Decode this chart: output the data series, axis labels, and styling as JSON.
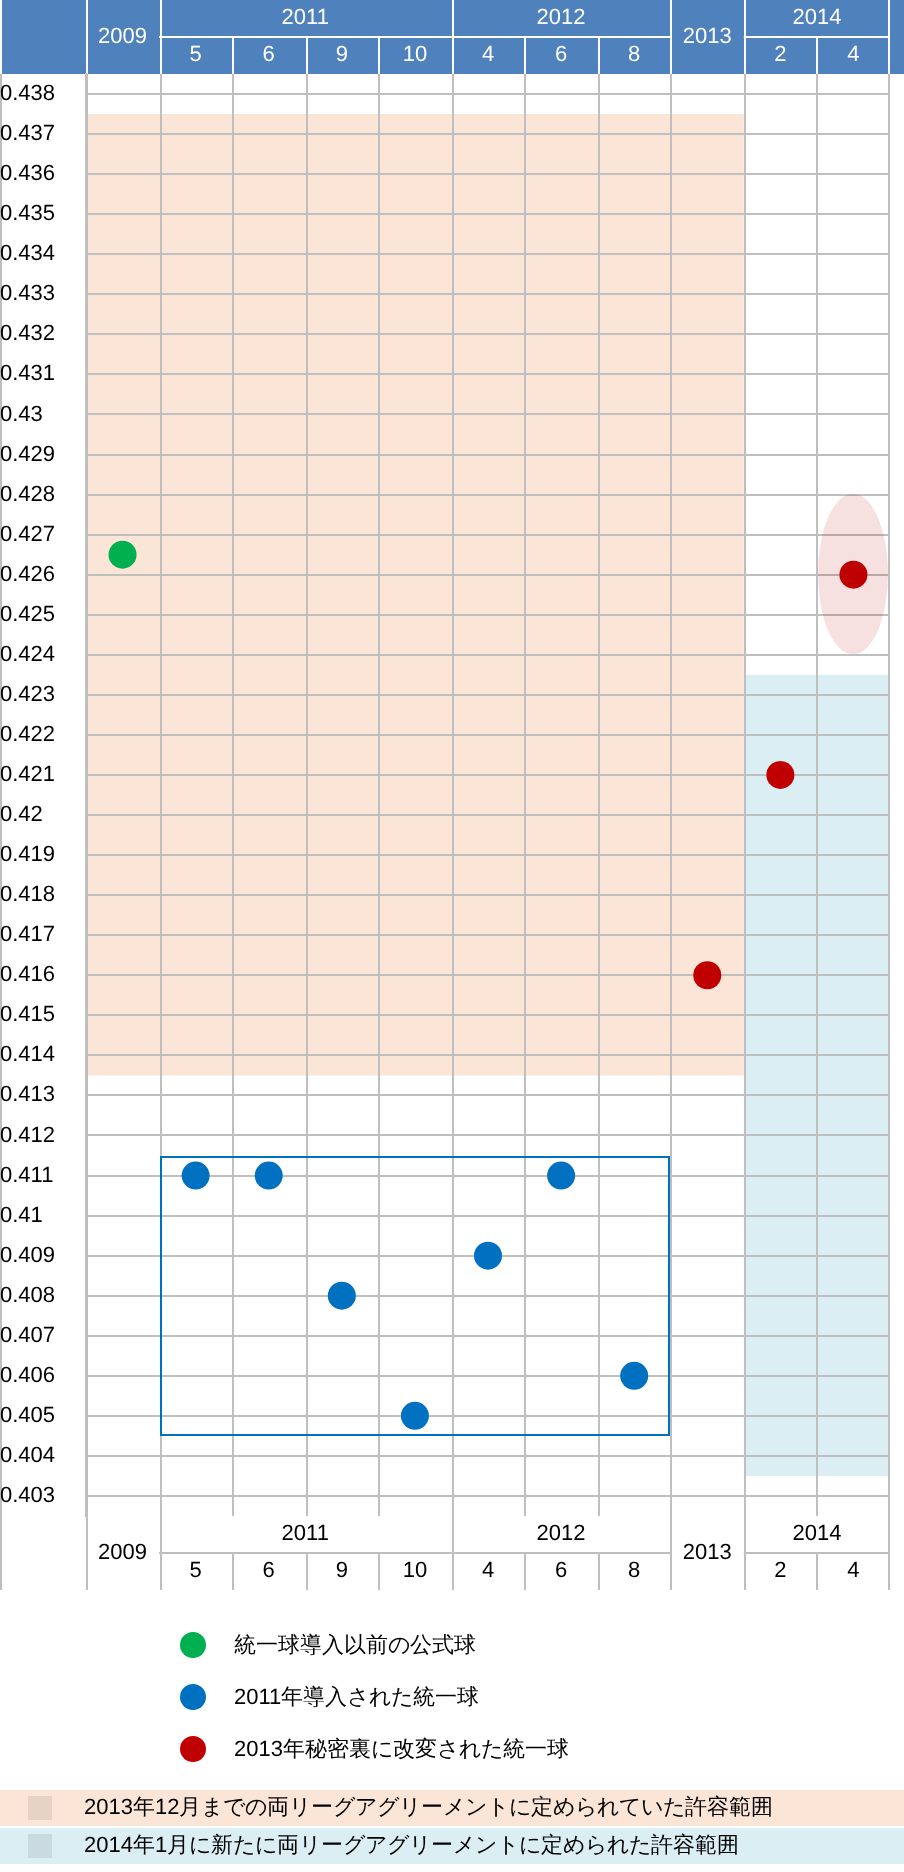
{
  "chart_data": {
    "type": "scatter",
    "categories": [
      "2009",
      "5",
      "6",
      "9",
      "10",
      "4",
      "6",
      "8",
      "2013",
      "2",
      "4"
    ],
    "annotations": [
      "2011",
      "2012",
      "2014"
    ],
    "series": [
      {
        "name": "統一球導入以前の公式球",
        "color": "#00b050",
        "values": [
          0.4265,
          null,
          null,
          null,
          null,
          null,
          null,
          null,
          null,
          null,
          null
        ]
      },
      {
        "name": "2011年導入された統一球",
        "color": "#0070c0",
        "values": [
          null,
          0.411,
          0.411,
          0.408,
          0.405,
          0.409,
          0.411,
          0.406,
          null,
          null,
          null
        ]
      },
      {
        "name": "2013年秘密裏に改変された統一球",
        "color": "#c00000",
        "values": [
          null,
          null,
          null,
          null,
          null,
          null,
          null,
          null,
          0.416,
          0.421,
          0.426
        ]
      }
    ],
    "ylim": [
      0.4025,
      0.4385
    ],
    "yticks": [
      0.403,
      0.404,
      0.405,
      0.406,
      0.407,
      0.408,
      0.409,
      0.41,
      0.411,
      0.412,
      0.413,
      0.414,
      0.415,
      0.416,
      0.417,
      0.418,
      0.419,
      0.42,
      0.421,
      0.422,
      0.423,
      0.424,
      0.425,
      0.426,
      0.427,
      0.428,
      0.429,
      0.43,
      0.431,
      0.432,
      0.433,
      0.434,
      0.435,
      0.436,
      0.437,
      0.438
    ],
    "bands": [
      {
        "axis": "y",
        "from": 0.4135,
        "to": 0.4375,
        "label": "2013年12月までの両リーグアグリーメントに定められていた許容範囲",
        "color": "#fbe5d6"
      },
      {
        "axis": "y",
        "from": 0.4035,
        "to": 0.4235,
        "label": "2014年1月に新たに両リーグアグリーメントに定められた許容範囲",
        "color": "#daeef3"
      }
    ],
    "grid": true,
    "legend": "bottom",
    "marker": "circle"
  }
}
